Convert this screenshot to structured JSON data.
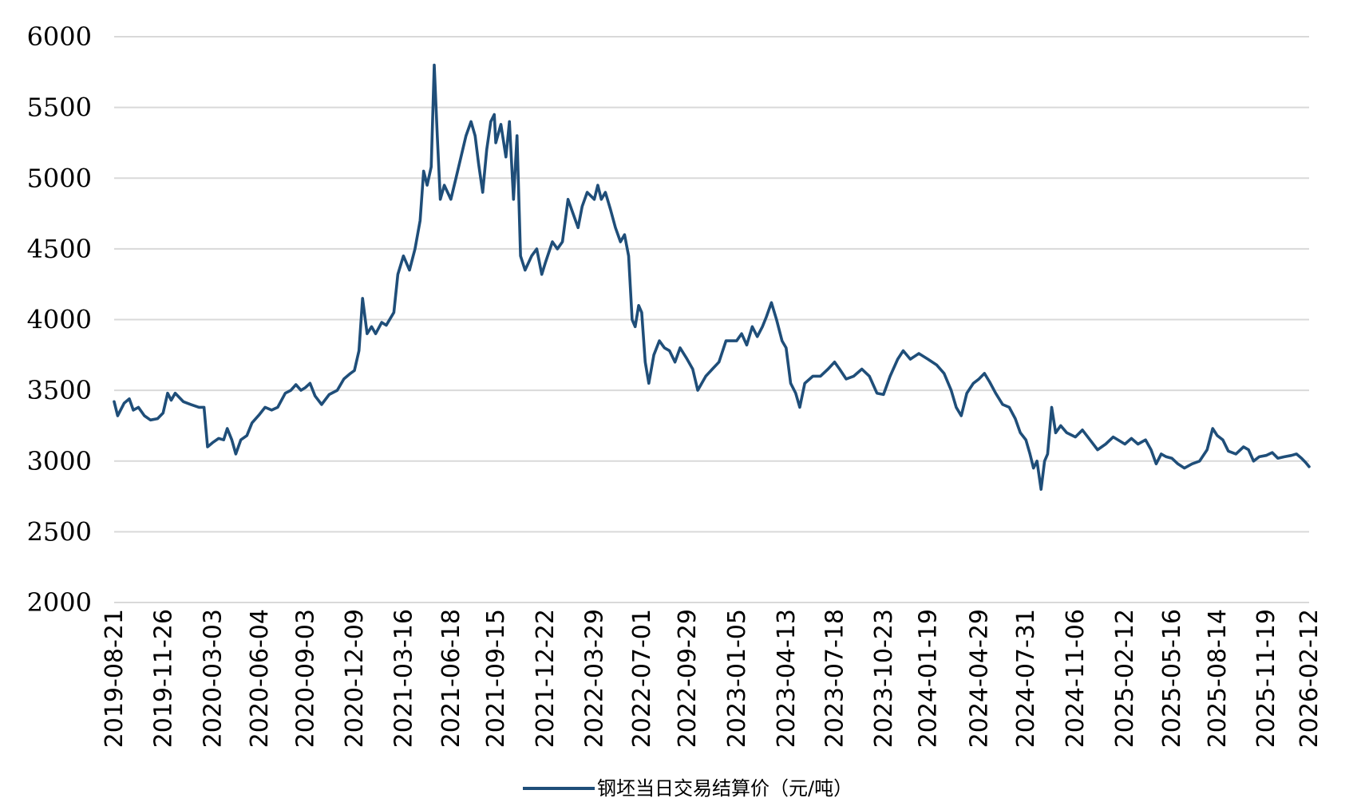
{
  "chart_data": {
    "type": "line",
    "title": "",
    "xlabel": "",
    "ylabel": "",
    "ylim": [
      2000,
      6000
    ],
    "yticks": [
      2000,
      2500,
      3000,
      3500,
      4000,
      4500,
      5000,
      5500,
      6000
    ],
    "grid": true,
    "legend_position": "bottom",
    "xticks": [
      "2019-08-21",
      "2019-11-26",
      "2020-03-03",
      "2020-06-04",
      "2020-09-03",
      "2020-12-09",
      "2021-03-16",
      "2021-06-18",
      "2021-09-15",
      "2021-12-22",
      "2022-03-29",
      "2022-07-01",
      "2022-09-29",
      "2023-01-05",
      "2023-04-13",
      "2023-07-18",
      "2023-10-23",
      "2024-01-19",
      "2024-04-29",
      "2024-07-31",
      "2024-11-06",
      "2025-02-12",
      "2025-05-16",
      "2025-08-14",
      "2025-11-19",
      "2026-02-12"
    ],
    "series": [
      {
        "name": "钢坯当日交易结算价（元/吨）",
        "color": "#1f4e79",
        "points": [
          [
            "2019-08-21",
            3420
          ],
          [
            "2019-08-28",
            3320
          ],
          [
            "2019-09-10",
            3410
          ],
          [
            "2019-09-20",
            3440
          ],
          [
            "2019-09-28",
            3360
          ],
          [
            "2019-10-08",
            3380
          ],
          [
            "2019-10-20",
            3320
          ],
          [
            "2019-11-01",
            3290
          ],
          [
            "2019-11-15",
            3300
          ],
          [
            "2019-11-26",
            3340
          ],
          [
            "2019-12-05",
            3480
          ],
          [
            "2019-12-12",
            3430
          ],
          [
            "2019-12-20",
            3480
          ],
          [
            "2020-01-05",
            3420
          ],
          [
            "2020-01-20",
            3400
          ],
          [
            "2020-02-05",
            3380
          ],
          [
            "2020-02-15",
            3380
          ],
          [
            "2020-02-22",
            3100
          ],
          [
            "2020-03-03",
            3130
          ],
          [
            "2020-03-15",
            3160
          ],
          [
            "2020-03-25",
            3150
          ],
          [
            "2020-04-01",
            3230
          ],
          [
            "2020-04-10",
            3150
          ],
          [
            "2020-04-18",
            3050
          ],
          [
            "2020-04-28",
            3150
          ],
          [
            "2020-05-10",
            3180
          ],
          [
            "2020-05-20",
            3270
          ],
          [
            "2020-06-04",
            3330
          ],
          [
            "2020-06-15",
            3380
          ],
          [
            "2020-06-28",
            3360
          ],
          [
            "2020-07-10",
            3380
          ],
          [
            "2020-07-25",
            3480
          ],
          [
            "2020-08-05",
            3500
          ],
          [
            "2020-08-15",
            3540
          ],
          [
            "2020-08-25",
            3500
          ],
          [
            "2020-09-03",
            3520
          ],
          [
            "2020-09-12",
            3550
          ],
          [
            "2020-09-22",
            3460
          ],
          [
            "2020-10-05",
            3400
          ],
          [
            "2020-10-20",
            3470
          ],
          [
            "2020-11-05",
            3500
          ],
          [
            "2020-11-18",
            3580
          ],
          [
            "2020-12-01",
            3620
          ],
          [
            "2020-12-09",
            3640
          ],
          [
            "2020-12-18",
            3780
          ],
          [
            "2020-12-25",
            4150
          ],
          [
            "2021-01-03",
            3900
          ],
          [
            "2021-01-12",
            3950
          ],
          [
            "2021-01-20",
            3900
          ],
          [
            "2021-02-01",
            3980
          ],
          [
            "2021-02-10",
            3960
          ],
          [
            "2021-02-25",
            4050
          ],
          [
            "2021-03-05",
            4320
          ],
          [
            "2021-03-16",
            4450
          ],
          [
            "2021-03-28",
            4350
          ],
          [
            "2021-04-08",
            4500
          ],
          [
            "2021-04-18",
            4700
          ],
          [
            "2021-04-25",
            5050
          ],
          [
            "2021-05-02",
            4950
          ],
          [
            "2021-05-10",
            5080
          ],
          [
            "2021-05-16",
            5800
          ],
          [
            "2021-05-22",
            5300
          ],
          [
            "2021-05-28",
            4850
          ],
          [
            "2021-06-05",
            4950
          ],
          [
            "2021-06-18",
            4850
          ],
          [
            "2021-06-28",
            5000
          ],
          [
            "2021-07-08",
            5150
          ],
          [
            "2021-07-18",
            5300
          ],
          [
            "2021-07-28",
            5400
          ],
          [
            "2021-08-05",
            5300
          ],
          [
            "2021-08-12",
            5100
          ],
          [
            "2021-08-20",
            4900
          ],
          [
            "2021-08-28",
            5200
          ],
          [
            "2021-09-05",
            5400
          ],
          [
            "2021-09-12",
            5450
          ],
          [
            "2021-09-15",
            5250
          ],
          [
            "2021-09-25",
            5380
          ],
          [
            "2021-10-05",
            5150
          ],
          [
            "2021-10-12",
            5400
          ],
          [
            "2021-10-20",
            4850
          ],
          [
            "2021-10-27",
            5300
          ],
          [
            "2021-11-03",
            4450
          ],
          [
            "2021-11-12",
            4350
          ],
          [
            "2021-11-25",
            4450
          ],
          [
            "2021-12-05",
            4500
          ],
          [
            "2021-12-15",
            4320
          ],
          [
            "2021-12-22",
            4400
          ],
          [
            "2022-01-05",
            4550
          ],
          [
            "2022-01-15",
            4500
          ],
          [
            "2022-01-25",
            4550
          ],
          [
            "2022-02-05",
            4850
          ],
          [
            "2022-02-15",
            4750
          ],
          [
            "2022-02-25",
            4650
          ],
          [
            "2022-03-05",
            4800
          ],
          [
            "2022-03-15",
            4900
          ],
          [
            "2022-03-29",
            4850
          ],
          [
            "2022-04-05",
            4950
          ],
          [
            "2022-04-12",
            4850
          ],
          [
            "2022-04-20",
            4900
          ],
          [
            "2022-04-30",
            4780
          ],
          [
            "2022-05-10",
            4650
          ],
          [
            "2022-05-20",
            4550
          ],
          [
            "2022-05-28",
            4600
          ],
          [
            "2022-06-05",
            4450
          ],
          [
            "2022-06-12",
            4000
          ],
          [
            "2022-06-18",
            3950
          ],
          [
            "2022-06-25",
            4100
          ],
          [
            "2022-07-01",
            4050
          ],
          [
            "2022-07-08",
            3700
          ],
          [
            "2022-07-15",
            3550
          ],
          [
            "2022-07-25",
            3750
          ],
          [
            "2022-08-05",
            3850
          ],
          [
            "2022-08-15",
            3800
          ],
          [
            "2022-08-25",
            3780
          ],
          [
            "2022-09-05",
            3700
          ],
          [
            "2022-09-15",
            3800
          ],
          [
            "2022-09-29",
            3720
          ],
          [
            "2022-10-10",
            3650
          ],
          [
            "2022-10-20",
            3500
          ],
          [
            "2022-11-05",
            3600
          ],
          [
            "2022-11-18",
            3650
          ],
          [
            "2022-12-01",
            3700
          ],
          [
            "2022-12-15",
            3850
          ],
          [
            "2023-01-05",
            3850
          ],
          [
            "2023-01-15",
            3900
          ],
          [
            "2023-01-25",
            3820
          ],
          [
            "2023-02-05",
            3950
          ],
          [
            "2023-02-15",
            3880
          ],
          [
            "2023-02-25",
            3950
          ],
          [
            "2023-03-05",
            4020
          ],
          [
            "2023-03-15",
            4120
          ],
          [
            "2023-03-25",
            4000
          ],
          [
            "2023-04-05",
            3850
          ],
          [
            "2023-04-13",
            3800
          ],
          [
            "2023-04-22",
            3550
          ],
          [
            "2023-05-02",
            3480
          ],
          [
            "2023-05-10",
            3380
          ],
          [
            "2023-05-20",
            3550
          ],
          [
            "2023-06-05",
            3600
          ],
          [
            "2023-06-20",
            3600
          ],
          [
            "2023-07-05",
            3650
          ],
          [
            "2023-07-18",
            3700
          ],
          [
            "2023-07-28",
            3650
          ],
          [
            "2023-08-10",
            3580
          ],
          [
            "2023-08-25",
            3600
          ],
          [
            "2023-09-10",
            3650
          ],
          [
            "2023-09-25",
            3600
          ],
          [
            "2023-10-10",
            3480
          ],
          [
            "2023-10-23",
            3470
          ],
          [
            "2023-11-05",
            3600
          ],
          [
            "2023-11-20",
            3720
          ],
          [
            "2023-12-01",
            3780
          ],
          [
            "2023-12-15",
            3720
          ],
          [
            "2024-01-01",
            3760
          ],
          [
            "2024-01-19",
            3720
          ],
          [
            "2024-02-05",
            3680
          ],
          [
            "2024-02-20",
            3620
          ],
          [
            "2024-03-05",
            3500
          ],
          [
            "2024-03-15",
            3380
          ],
          [
            "2024-03-25",
            3320
          ],
          [
            "2024-04-05",
            3480
          ],
          [
            "2024-04-18",
            3550
          ],
          [
            "2024-04-29",
            3580
          ],
          [
            "2024-05-10",
            3620
          ],
          [
            "2024-05-20",
            3560
          ],
          [
            "2024-06-01",
            3480
          ],
          [
            "2024-06-15",
            3400
          ],
          [
            "2024-06-28",
            3380
          ],
          [
            "2024-07-10",
            3300
          ],
          [
            "2024-07-20",
            3200
          ],
          [
            "2024-07-31",
            3150
          ],
          [
            "2024-08-08",
            3050
          ],
          [
            "2024-08-15",
            2950
          ],
          [
            "2024-08-22",
            3000
          ],
          [
            "2024-08-30",
            2800
          ],
          [
            "2024-09-06",
            3000
          ],
          [
            "2024-09-12",
            3050
          ],
          [
            "2024-09-20",
            3380
          ],
          [
            "2024-09-28",
            3200
          ],
          [
            "2024-10-08",
            3250
          ],
          [
            "2024-10-20",
            3200
          ],
          [
            "2024-11-06",
            3170
          ],
          [
            "2024-11-20",
            3220
          ],
          [
            "2024-12-05",
            3150
          ],
          [
            "2024-12-20",
            3080
          ],
          [
            "2025-01-05",
            3120
          ],
          [
            "2025-01-20",
            3170
          ],
          [
            "2025-02-12",
            3120
          ],
          [
            "2025-02-25",
            3160
          ],
          [
            "2025-03-10",
            3120
          ],
          [
            "2025-03-25",
            3150
          ],
          [
            "2025-04-05",
            3080
          ],
          [
            "2025-04-15",
            2980
          ],
          [
            "2025-04-25",
            3050
          ],
          [
            "2025-05-05",
            3030
          ],
          [
            "2025-05-16",
            3020
          ],
          [
            "2025-05-28",
            2980
          ],
          [
            "2025-06-10",
            2950
          ],
          [
            "2025-06-25",
            2980
          ],
          [
            "2025-07-10",
            3000
          ],
          [
            "2025-07-25",
            3080
          ],
          [
            "2025-08-05",
            3230
          ],
          [
            "2025-08-14",
            3180
          ],
          [
            "2025-08-25",
            3150
          ],
          [
            "2025-09-05",
            3070
          ],
          [
            "2025-09-20",
            3050
          ],
          [
            "2025-10-05",
            3100
          ],
          [
            "2025-10-15",
            3080
          ],
          [
            "2025-10-25",
            3000
          ],
          [
            "2025-11-05",
            3030
          ],
          [
            "2025-11-19",
            3040
          ],
          [
            "2025-12-01",
            3060
          ],
          [
            "2025-12-12",
            3020
          ],
          [
            "2025-12-25",
            3030
          ],
          [
            "2026-01-08",
            3040
          ],
          [
            "2026-01-18",
            3050
          ],
          [
            "2026-01-28",
            3020
          ],
          [
            "2026-02-05",
            2990
          ],
          [
            "2026-02-12",
            2960
          ]
        ]
      }
    ]
  }
}
